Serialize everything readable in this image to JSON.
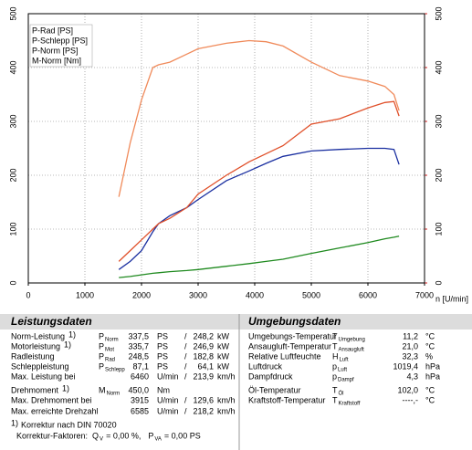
{
  "chart_data": {
    "type": "line",
    "x_label": "n [U/min]",
    "x": [
      1600,
      1800,
      2000,
      2200,
      2300,
      2500,
      2800,
      3000,
      3500,
      3900,
      4200,
      4500,
      5000,
      5500,
      6000,
      6300,
      6460,
      6550
    ],
    "series": [
      {
        "name": "P-Rad [PS]",
        "color": "#1a2fa0",
        "values": [
          25,
          40,
          60,
          95,
          110,
          125,
          140,
          155,
          190,
          208,
          222,
          235,
          245,
          248,
          250,
          250,
          248,
          220
        ]
      },
      {
        "name": "P-Schlepp [PS]",
        "color": "#1f8a1f",
        "values": [
          10,
          12,
          15,
          18,
          19,
          21,
          23,
          25,
          31,
          36,
          40,
          44,
          55,
          65,
          75,
          82,
          85,
          87
        ]
      },
      {
        "name": "P-Norm [PS]",
        "color": "#e0502a",
        "values": [
          40,
          60,
          80,
          100,
          110,
          120,
          140,
          165,
          200,
          225,
          240,
          255,
          295,
          305,
          325,
          335,
          337,
          310
        ]
      },
      {
        "name": "M-Norm [Nm]",
        "color": "#f08a5a",
        "axis": "y2",
        "values": [
          160,
          260,
          340,
          400,
          405,
          410,
          425,
          435,
          445,
          450,
          448,
          440,
          410,
          385,
          375,
          365,
          350,
          320
        ]
      }
    ],
    "xlim": [
      0,
      7000
    ],
    "xticks": [
      0,
      1000,
      2000,
      3000,
      4000,
      5000,
      6000,
      7000
    ],
    "ylim": [
      0,
      500
    ],
    "yticks": [
      0,
      100,
      200,
      300,
      400,
      500
    ],
    "y2lim": [
      0,
      500
    ],
    "y2ticks": [
      0,
      100,
      200,
      300,
      400,
      500
    ],
    "y2_color": "#d42020",
    "grid": true,
    "legend": "upper left"
  },
  "leistungsdaten": {
    "title": "Leistungsdaten",
    "rows": [
      {
        "label": "Norm-Leistung",
        "note": "1)",
        "symbol": "P",
        "sub": "Norm",
        "value": "337,5",
        "unit": "PS",
        "sep": "/",
        "value2": "248,2",
        "unit2": "kW",
        "color": "#d42020"
      },
      {
        "label": "Motorleistung",
        "note": "1)",
        "symbol": "P",
        "sub": "Mot",
        "value": "335,7",
        "unit": "PS",
        "sep": "/",
        "value2": "246,9",
        "unit2": "kW",
        "color": "#d42020"
      },
      {
        "label": "Radleistung",
        "symbol": "P",
        "sub": "Rad",
        "value": "248,5",
        "unit": "PS",
        "sep": "/",
        "value2": "182,8",
        "unit2": "kW",
        "color": "#1a2fa0"
      },
      {
        "label": "Schleppleistung",
        "symbol": "P",
        "sub": "Schlepp",
        "value": "87,1",
        "unit": "PS",
        "sep": "/",
        "value2": "64,1",
        "unit2": "kW",
        "color": "#1f8a1f"
      },
      {
        "label": "Max. Leistung bei",
        "value": "6460",
        "unit": "U/min",
        "sep": "/",
        "value2": "213,9",
        "unit2": "km/h"
      },
      {
        "label": "Drehmoment",
        "note": "1)",
        "symbol": "M",
        "sub": "Norm",
        "value": "450,0",
        "unit": "Nm",
        "color": "#d42020"
      },
      {
        "label": "Max. Drehmoment bei",
        "value": "3915",
        "unit": "U/min",
        "sep": "/",
        "value2": "129,6",
        "unit2": "km/h"
      },
      {
        "label": "Max. erreichte Drehzahl",
        "value": "6585",
        "unit": "U/min",
        "sep": "/",
        "value2": "218,2",
        "unit2": "km/h"
      }
    ],
    "footnote": {
      "note": "1)",
      "text": "Korrektur nach DIN 70020"
    },
    "factors": {
      "label": "Korrektur-Faktoren:",
      "items": [
        {
          "symbol": "Q",
          "sub": "V",
          "text": "= 0,00 %,"
        },
        {
          "symbol": "P",
          "sub": "VA",
          "text": "= 0,00 PS"
        }
      ]
    },
    "color": "#d42020"
  },
  "umgebungsdaten": {
    "title": "Umgebungsdaten",
    "rows": [
      {
        "label": "Umgebungs-Temperatur",
        "symbol": "T",
        "sub": "Umgebung",
        "value": "11,2",
        "unit": "°C"
      },
      {
        "label": "Ansaugluft-Temperatur",
        "symbol": "T",
        "sub": "Ansaugluft",
        "value": "21,0",
        "unit": "°C"
      },
      {
        "label": "Relative Luftfeuchte",
        "symbol": "H",
        "sub": "Luft",
        "value": "32,3",
        "unit": "%"
      },
      {
        "label": "Luftdruck",
        "symbol": "p",
        "sub": "Luft",
        "value": "1019,4",
        "unit": "hPa"
      },
      {
        "label": "Dampfdruck",
        "symbol": "p",
        "sub": "Dampf",
        "value": "4,3",
        "unit": "hPa"
      },
      {
        "label": "Öl-Temperatur",
        "symbol": "T",
        "sub": "Öl",
        "value": "102,0",
        "unit": "°C"
      },
      {
        "label": "Kraftstoff-Temperatur",
        "symbol": "T",
        "sub": "Kraftstoff",
        "value": "----,-",
        "unit": "°C"
      }
    ]
  }
}
